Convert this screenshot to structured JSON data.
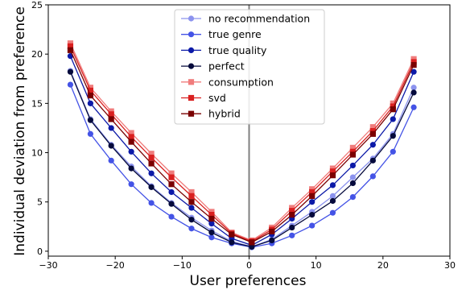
{
  "chart_data": {
    "type": "line",
    "xlabel": "User preferences",
    "ylabel": "Individual deviation from preference",
    "xlim": [
      -30,
      30
    ],
    "ylim": [
      -0.5,
      25
    ],
    "xticks": [
      -30,
      -20,
      -10,
      0,
      10,
      20,
      30
    ],
    "yticks": [
      0,
      5,
      10,
      15,
      20,
      25
    ],
    "x": [
      -26.7,
      -23.7,
      -20.6,
      -17.6,
      -14.6,
      -11.6,
      -8.6,
      -5.6,
      -2.6,
      0.4,
      3.4,
      6.4,
      9.4,
      12.5,
      15.5,
      18.5,
      21.5,
      24.6
    ],
    "vline_x": 0,
    "legend_position": "top-center",
    "series": [
      {
        "name": "no recommendation",
        "color": "#8c93ee",
        "marker": "circle",
        "values": [
          18.3,
          13.4,
          10.8,
          8.6,
          6.6,
          4.9,
          3.4,
          2.1,
          1.0,
          0.45,
          1.2,
          2.6,
          4.0,
          5.6,
          7.5,
          9.4,
          11.9,
          16.6
        ]
      },
      {
        "name": "true genre",
        "color": "#4453e6",
        "marker": "circle",
        "values": [
          16.9,
          11.9,
          9.2,
          6.8,
          4.9,
          3.5,
          2.3,
          1.4,
          0.8,
          0.4,
          0.8,
          1.6,
          2.6,
          3.9,
          5.5,
          7.6,
          10.1,
          14.6
        ]
      },
      {
        "name": "true quality",
        "color": "#0c1aa8",
        "marker": "circle",
        "values": [
          19.8,
          15.0,
          12.5,
          10.1,
          7.9,
          6.0,
          4.4,
          2.8,
          1.3,
          0.6,
          1.7,
          3.3,
          5.0,
          6.7,
          8.7,
          10.8,
          13.4,
          18.2
        ]
      },
      {
        "name": "perfect",
        "color": "#050a3c",
        "marker": "circle",
        "values": [
          18.2,
          13.3,
          10.7,
          8.4,
          6.5,
          4.8,
          3.2,
          1.9,
          0.9,
          0.45,
          1.1,
          2.4,
          3.7,
          5.1,
          6.9,
          9.2,
          11.7,
          16.1
        ]
      },
      {
        "name": "consumption",
        "color": "#f07c7c",
        "marker": "square",
        "values": [
          21.1,
          16.6,
          14.2,
          12.0,
          9.9,
          7.9,
          6.0,
          4.0,
          1.9,
          1.1,
          2.4,
          4.4,
          6.3,
          8.4,
          10.5,
          12.6,
          15.0,
          19.5
        ]
      },
      {
        "name": "svd",
        "color": "#d92020",
        "marker": "square",
        "values": [
          20.8,
          16.3,
          13.9,
          11.6,
          9.5,
          7.5,
          5.6,
          3.7,
          1.8,
          1.0,
          2.2,
          4.1,
          6.0,
          8.1,
          10.1,
          12.2,
          14.7,
          19.2
        ]
      },
      {
        "name": "hybrid",
        "color": "#7a0000",
        "marker": "square",
        "values": [
          20.4,
          15.8,
          13.4,
          11.1,
          8.9,
          6.8,
          5.0,
          3.3,
          1.7,
          0.9,
          2.0,
          3.7,
          5.6,
          7.7,
          9.8,
          11.9,
          14.4,
          18.9
        ]
      }
    ]
  }
}
